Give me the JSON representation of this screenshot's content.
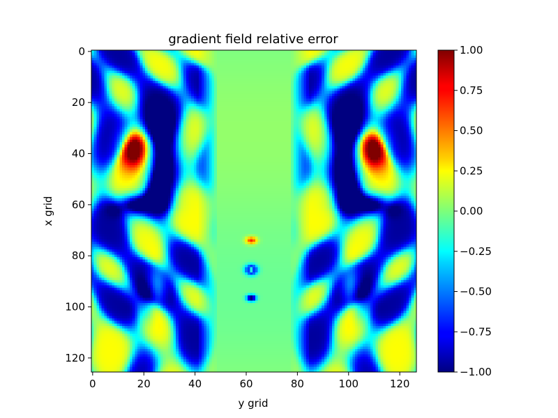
{
  "chart_data": {
    "type": "heatmap",
    "title": "gradient field relative error",
    "xlabel": "y grid",
    "ylabel": "x grid",
    "x_ticks": [
      0,
      20,
      40,
      60,
      80,
      100,
      120
    ],
    "y_ticks": [
      0,
      20,
      40,
      60,
      80,
      100,
      120
    ],
    "xlim": [
      -0.5,
      126.5
    ],
    "ylim": [
      125.5,
      -0.5
    ],
    "grid_size": [
      126,
      127
    ],
    "colormap": "jet",
    "color_range": [
      -1.0,
      1.0
    ],
    "colorbar_ticks": [
      "1.00",
      "0.75",
      "0.50",
      "0.25",
      "0.00",
      "−0.25",
      "−0.50",
      "−0.75",
      "−1.00"
    ],
    "colorbar_values": [
      1.0,
      0.75,
      0.5,
      0.25,
      0.0,
      -0.25,
      -0.5,
      -0.75,
      -1.0
    ],
    "grid": false
  }
}
